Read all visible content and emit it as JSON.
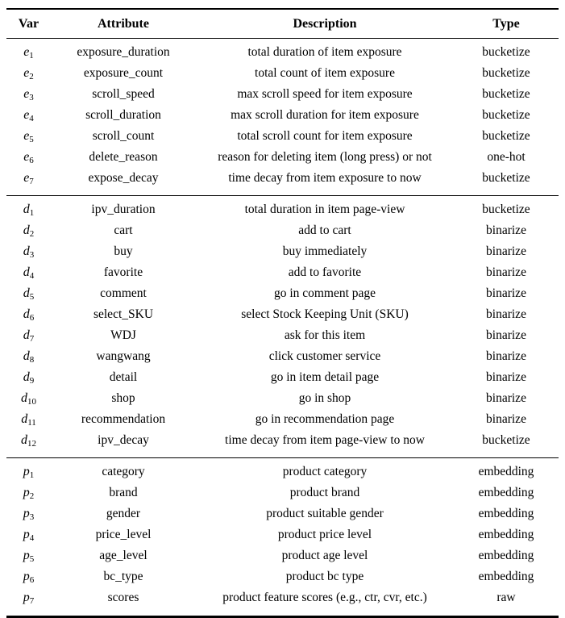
{
  "table": {
    "headers": [
      "Var",
      "Attribute",
      "Description",
      "Type"
    ],
    "sections": [
      {
        "group": "exposure-variables",
        "rows": [
          {
            "var": "e",
            "sub": "1",
            "attribute": "exposure_duration",
            "description": "total duration of item exposure",
            "type": "bucketize"
          },
          {
            "var": "e",
            "sub": "2",
            "attribute": "exposure_count",
            "description": "total count of item exposure",
            "type": "bucketize"
          },
          {
            "var": "e",
            "sub": "3",
            "attribute": "scroll_speed",
            "description": "max scroll speed for item exposure",
            "type": "bucketize"
          },
          {
            "var": "e",
            "sub": "4",
            "attribute": "scroll_duration",
            "description": "max scroll duration for item exposure",
            "type": "bucketize"
          },
          {
            "var": "e",
            "sub": "5",
            "attribute": "scroll_count",
            "description": "total scroll count for item exposure",
            "type": "bucketize"
          },
          {
            "var": "e",
            "sub": "6",
            "attribute": "delete_reason",
            "description": "reason for deleting item (long press) or not",
            "type": "one-hot"
          },
          {
            "var": "e",
            "sub": "7",
            "attribute": "expose_decay",
            "description": "time decay from item exposure to now",
            "type": "bucketize"
          }
        ]
      },
      {
        "group": "page-view-variables",
        "rows": [
          {
            "var": "d",
            "sub": "1",
            "attribute": "ipv_duration",
            "description": "total duration in item page-view",
            "type": "bucketize"
          },
          {
            "var": "d",
            "sub": "2",
            "attribute": "cart",
            "description": "add to cart",
            "type": "binarize"
          },
          {
            "var": "d",
            "sub": "3",
            "attribute": "buy",
            "description": "buy immediately",
            "type": "binarize"
          },
          {
            "var": "d",
            "sub": "4",
            "attribute": "favorite",
            "description": "add to favorite",
            "type": "binarize"
          },
          {
            "var": "d",
            "sub": "5",
            "attribute": "comment",
            "description": "go in comment page",
            "type": "binarize"
          },
          {
            "var": "d",
            "sub": "6",
            "attribute": "select_SKU",
            "description": "select Stock Keeping Unit (SKU)",
            "type": "binarize"
          },
          {
            "var": "d",
            "sub": "7",
            "attribute": "WDJ",
            "description": "ask for this item",
            "type": "binarize"
          },
          {
            "var": "d",
            "sub": "8",
            "attribute": "wangwang",
            "description": "click customer service",
            "type": "binarize"
          },
          {
            "var": "d",
            "sub": "9",
            "attribute": "detail",
            "description": "go in item detail page",
            "type": "binarize"
          },
          {
            "var": "d",
            "sub": "10",
            "attribute": "shop",
            "description": "go in shop",
            "type": "binarize"
          },
          {
            "var": "d",
            "sub": "11",
            "attribute": "recommendation",
            "description": "go in recommendation page",
            "type": "binarize"
          },
          {
            "var": "d",
            "sub": "12",
            "attribute": "ipv_decay",
            "description": "time decay from item page-view to now",
            "type": "bucketize"
          }
        ]
      },
      {
        "group": "product-variables",
        "rows": [
          {
            "var": "p",
            "sub": "1",
            "attribute": "category",
            "description": "product category",
            "type": "embedding"
          },
          {
            "var": "p",
            "sub": "2",
            "attribute": "brand",
            "description": "product brand",
            "type": "embedding"
          },
          {
            "var": "p",
            "sub": "3",
            "attribute": "gender",
            "description": "product suitable gender",
            "type": "embedding"
          },
          {
            "var": "p",
            "sub": "4",
            "attribute": "price_level",
            "description": "product price level",
            "type": "embedding"
          },
          {
            "var": "p",
            "sub": "5",
            "attribute": "age_level",
            "description": "product age level",
            "type": "embedding"
          },
          {
            "var": "p",
            "sub": "6",
            "attribute": "bc_type",
            "description": "product bc type",
            "type": "embedding"
          },
          {
            "var": "p",
            "sub": "7",
            "attribute": "scores",
            "description": "product feature scores (e.g., ctr, cvr, etc.)",
            "type": "raw"
          }
        ]
      }
    ]
  },
  "colors": {
    "text": "#000000",
    "background": "#ffffff",
    "rule": "#000000"
  }
}
